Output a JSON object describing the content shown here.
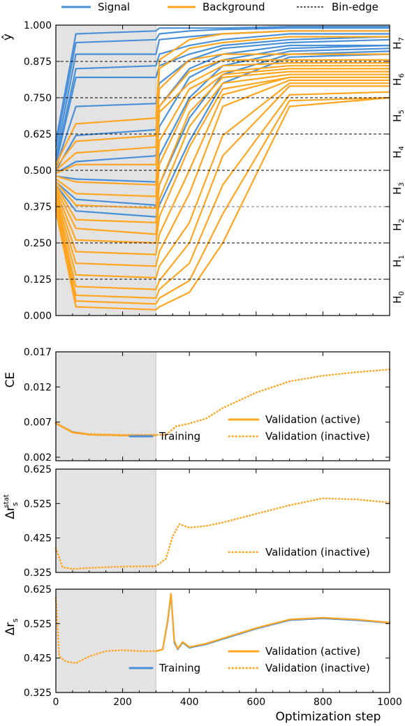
{
  "colors": {
    "signal": "#4a90d9",
    "background": "#ffa520",
    "shade": "#e3e3e3",
    "binedge": "#000000"
  },
  "legend_top": {
    "signal": "Signal",
    "background": "Background",
    "binedge": "Bin-edge"
  },
  "xlabel": "Optimization step",
  "x_ticks": [
    "0",
    "200",
    "400",
    "600",
    "800",
    "1000"
  ],
  "chart_data": [
    {
      "type": "line",
      "panel": "yhat",
      "ylabel": "ŷ",
      "xlim": [
        0,
        1000
      ],
      "ylim": [
        0,
        1
      ],
      "y_ticks": [
        "0.000",
        "0.125",
        "0.250",
        "0.375",
        "0.500",
        "0.625",
        "0.750",
        "0.875",
        "1.000"
      ],
      "shaded_region": [
        0,
        300
      ],
      "bin_edges": [
        0.125,
        0.25,
        0.375,
        0.5,
        0.625,
        0.75,
        0.875
      ],
      "zones": [
        {
          "label": "H",
          "sub": "0"
        },
        {
          "label": "H",
          "sub": "1"
        },
        {
          "label": "H",
          "sub": "2"
        },
        {
          "label": "H",
          "sub": "3"
        },
        {
          "label": "H",
          "sub": "4"
        },
        {
          "label": "H",
          "sub": "5"
        },
        {
          "label": "H",
          "sub": "6"
        },
        {
          "label": "H",
          "sub": "7"
        }
      ],
      "signal_series": [
        {
          "x": [
            0,
            60,
            300,
            310,
            400,
            500,
            700,
            1000
          ],
          "y": [
            0.6,
            0.97,
            0.98,
            0.99,
            0.99,
            0.99,
            0.995,
            0.995
          ]
        },
        {
          "x": [
            0,
            60,
            300,
            310,
            400,
            500,
            700,
            1000
          ],
          "y": [
            0.58,
            0.94,
            0.95,
            0.97,
            0.98,
            0.985,
            0.99,
            0.99
          ]
        },
        {
          "x": [
            0,
            60,
            300,
            310,
            400,
            500,
            700,
            1000
          ],
          "y": [
            0.55,
            0.9,
            0.9,
            0.95,
            0.96,
            0.97,
            0.98,
            0.98
          ]
        },
        {
          "x": [
            0,
            60,
            300,
            310,
            400,
            500,
            700,
            1000
          ],
          "y": [
            0.53,
            0.85,
            0.86,
            0.9,
            0.93,
            0.95,
            0.97,
            0.97
          ]
        },
        {
          "x": [
            0,
            60,
            300,
            310,
            400,
            500,
            700,
            1000
          ],
          "y": [
            0.52,
            0.82,
            0.82,
            0.86,
            0.9,
            0.93,
            0.95,
            0.96
          ]
        },
        {
          "x": [
            0,
            60,
            300,
            310,
            400,
            500,
            700,
            1000
          ],
          "y": [
            0.51,
            0.72,
            0.73,
            0.8,
            0.88,
            0.92,
            0.94,
            0.95
          ]
        },
        {
          "x": [
            0,
            60,
            300,
            310,
            400,
            500,
            700,
            1000
          ],
          "y": [
            0.5,
            0.62,
            0.64,
            0.72,
            0.85,
            0.9,
            0.93,
            0.93
          ]
        },
        {
          "x": [
            0,
            60,
            300,
            310,
            400,
            500,
            700,
            1000
          ],
          "y": [
            0.49,
            0.53,
            0.55,
            0.65,
            0.82,
            0.88,
            0.92,
            0.93
          ]
        },
        {
          "x": [
            0,
            60,
            300,
            310,
            400,
            500,
            700,
            1000
          ],
          "y": [
            0.48,
            0.47,
            0.46,
            0.55,
            0.75,
            0.86,
            0.91,
            0.92
          ]
        },
        {
          "x": [
            0,
            60,
            300,
            310,
            400,
            500,
            700,
            1000
          ],
          "y": [
            0.46,
            0.4,
            0.38,
            0.45,
            0.68,
            0.83,
            0.9,
            0.91
          ]
        },
        {
          "x": [
            0,
            60,
            300,
            310,
            400,
            500,
            700,
            1000
          ],
          "y": [
            0.45,
            0.36,
            0.34,
            0.38,
            0.6,
            0.8,
            0.89,
            0.9
          ]
        }
      ],
      "background_series": [
        {
          "x": [
            0,
            60,
            300,
            310,
            400,
            500,
            700,
            1000
          ],
          "y": [
            0.52,
            0.66,
            0.68,
            0.88,
            0.95,
            0.97,
            0.98,
            0.98
          ]
        },
        {
          "x": [
            0,
            60,
            300,
            310,
            400,
            500,
            700,
            1000
          ],
          "y": [
            0.51,
            0.6,
            0.62,
            0.85,
            0.92,
            0.94,
            0.96,
            0.96
          ]
        },
        {
          "x": [
            0,
            60,
            300,
            310,
            400,
            500,
            700,
            1000
          ],
          "y": [
            0.5,
            0.56,
            0.58,
            0.78,
            0.88,
            0.9,
            0.9,
            0.9
          ]
        },
        {
          "x": [
            0,
            60,
            300,
            310,
            400,
            500,
            700,
            1000
          ],
          "y": [
            0.49,
            0.52,
            0.52,
            0.72,
            0.84,
            0.88,
            0.88,
            0.88
          ]
        },
        {
          "x": [
            0,
            60,
            300,
            310,
            400,
            500,
            700,
            1000
          ],
          "y": [
            0.48,
            0.46,
            0.45,
            0.7,
            0.8,
            0.86,
            0.87,
            0.87
          ]
        },
        {
          "x": [
            0,
            60,
            300,
            310,
            400,
            500,
            700,
            1000
          ],
          "y": [
            0.47,
            0.42,
            0.41,
            0.6,
            0.78,
            0.84,
            0.86,
            0.86
          ]
        },
        {
          "x": [
            0,
            60,
            300,
            310,
            400,
            500,
            700,
            1000
          ],
          "y": [
            0.46,
            0.38,
            0.37,
            0.52,
            0.74,
            0.83,
            0.85,
            0.85
          ]
        },
        {
          "x": [
            0,
            60,
            300,
            310,
            400,
            500,
            700,
            1000
          ],
          "y": [
            0.45,
            0.33,
            0.32,
            0.45,
            0.7,
            0.82,
            0.84,
            0.84
          ]
        },
        {
          "x": [
            0,
            60,
            300,
            310,
            400,
            500,
            700,
            1000
          ],
          "y": [
            0.44,
            0.3,
            0.28,
            0.4,
            0.65,
            0.8,
            0.83,
            0.83
          ]
        },
        {
          "x": [
            0,
            60,
            300,
            310,
            400,
            500,
            700,
            1000
          ],
          "y": [
            0.43,
            0.26,
            0.25,
            0.34,
            0.58,
            0.78,
            0.82,
            0.82
          ]
        },
        {
          "x": [
            0,
            60,
            300,
            310,
            400,
            500,
            700,
            1000
          ],
          "y": [
            0.42,
            0.22,
            0.21,
            0.28,
            0.5,
            0.76,
            0.82,
            0.82
          ]
        },
        {
          "x": [
            0,
            60,
            300,
            310,
            400,
            500,
            700,
            1000
          ],
          "y": [
            0.41,
            0.18,
            0.17,
            0.22,
            0.42,
            0.72,
            0.81,
            0.81
          ]
        },
        {
          "x": [
            0,
            60,
            300,
            310,
            400,
            500,
            700,
            1000
          ],
          "y": [
            0.4,
            0.14,
            0.13,
            0.17,
            0.32,
            0.62,
            0.8,
            0.8
          ]
        },
        {
          "x": [
            0,
            60,
            300,
            310,
            400,
            500,
            700,
            1000
          ],
          "y": [
            0.39,
            0.1,
            0.09,
            0.12,
            0.25,
            0.55,
            0.79,
            0.79
          ]
        },
        {
          "x": [
            0,
            60,
            300,
            310,
            400,
            500,
            700,
            1000
          ],
          "y": [
            0.38,
            0.07,
            0.06,
            0.09,
            0.18,
            0.45,
            0.76,
            0.77
          ]
        },
        {
          "x": [
            0,
            60,
            300,
            310,
            400,
            500,
            700,
            1000
          ],
          "y": [
            0.37,
            0.05,
            0.04,
            0.06,
            0.12,
            0.35,
            0.74,
            0.75
          ]
        },
        {
          "x": [
            0,
            60,
            300,
            310,
            400,
            500,
            700,
            1000
          ],
          "y": [
            0.36,
            0.03,
            0.02,
            0.03,
            0.08,
            0.25,
            0.72,
            0.75
          ]
        }
      ]
    },
    {
      "type": "line",
      "panel": "ce",
      "ylabel": "CE",
      "xlim": [
        0,
        1000
      ],
      "ylim": [
        0.0015,
        0.017
      ],
      "y_ticks": [
        "0.017",
        "0.012",
        "0.007",
        "0.002"
      ],
      "y_tick_values": [
        0.017,
        0.012,
        0.007,
        0.002
      ],
      "shaded_region": [
        0,
        300
      ],
      "series": [
        {
          "name": "Training",
          "style": "solid",
          "color": "signal",
          "x": [
            0,
            50,
            100,
            200,
            300
          ],
          "y": [
            0.0068,
            0.0056,
            0.0052,
            0.0051,
            0.0051
          ]
        },
        {
          "name": "Validation (active)",
          "style": "solid",
          "color": "background",
          "x": [
            0,
            50,
            100,
            200,
            300
          ],
          "y": [
            0.0068,
            0.0055,
            0.0052,
            0.0051,
            0.0051
          ]
        },
        {
          "name": "Validation (inactive)",
          "style": "dotted",
          "color": "background",
          "x": [
            0,
            50,
            100,
            200,
            300,
            330,
            360,
            400,
            450,
            500,
            600,
            700,
            800,
            900,
            1000
          ],
          "y": [
            0.0069,
            0.0056,
            0.0053,
            0.0052,
            0.0052,
            0.0052,
            0.0064,
            0.0068,
            0.0075,
            0.009,
            0.0112,
            0.0128,
            0.0136,
            0.0141,
            0.0145
          ]
        }
      ],
      "legend": [
        "Validation (active)",
        "Training",
        "Validation (inactive)"
      ]
    },
    {
      "type": "line",
      "panel": "dr_stat",
      "ylabel": "Δr",
      "ylabel_sup": "stat",
      "ylabel_sub": "s",
      "xlim": [
        0,
        1000
      ],
      "ylim": [
        0.325,
        0.625
      ],
      "y_ticks": [
        "0.625",
        "0.525",
        "0.425",
        "0.325"
      ],
      "y_tick_values": [
        0.625,
        0.525,
        0.425,
        0.325
      ],
      "shaded_region": [
        0,
        300
      ],
      "series": [
        {
          "name": "Validation (inactive)",
          "style": "dotted",
          "color": "background",
          "x": [
            0,
            20,
            50,
            100,
            200,
            300,
            330,
            350,
            370,
            400,
            450,
            500,
            600,
            700,
            800,
            900,
            1000
          ],
          "y": [
            0.395,
            0.34,
            0.335,
            0.338,
            0.342,
            0.343,
            0.365,
            0.43,
            0.465,
            0.455,
            0.46,
            0.47,
            0.495,
            0.52,
            0.54,
            0.537,
            0.528
          ]
        }
      ],
      "legend": [
        "Validation (inactive)"
      ]
    },
    {
      "type": "line",
      "panel": "dr",
      "ylabel": "Δr",
      "ylabel_sub": "s",
      "xlim": [
        0,
        1000
      ],
      "ylim": [
        0.325,
        0.625
      ],
      "y_ticks": [
        "0.625",
        "0.525",
        "0.425",
        "0.325"
      ],
      "y_tick_values": [
        0.625,
        0.525,
        0.425,
        0.325
      ],
      "shaded_region": [
        0,
        300
      ],
      "series": [
        {
          "name": "Training",
          "style": "solid",
          "color": "signal",
          "x": [
            300,
            320,
            335,
            345,
            355,
            365,
            380,
            400,
            450,
            500,
            600,
            700,
            800,
            900,
            1000
          ],
          "y": [
            0.445,
            0.45,
            0.53,
            0.61,
            0.47,
            0.45,
            0.47,
            0.455,
            0.465,
            0.48,
            0.51,
            0.535,
            0.54,
            0.535,
            0.527
          ]
        },
        {
          "name": "Validation (active)",
          "style": "solid",
          "color": "background",
          "x": [
            300,
            320,
            335,
            345,
            355,
            365,
            380,
            400,
            450,
            500,
            600,
            700,
            800,
            900,
            1000
          ],
          "y": [
            0.445,
            0.45,
            0.535,
            0.612,
            0.475,
            0.452,
            0.472,
            0.457,
            0.467,
            0.482,
            0.512,
            0.537,
            0.542,
            0.537,
            0.528
          ]
        },
        {
          "name": "Validation (inactive)",
          "style": "dotted",
          "color": "background",
          "x": [
            0,
            10,
            30,
            60,
            100,
            150,
            200,
            250,
            300
          ],
          "y": [
            0.6,
            0.43,
            0.415,
            0.41,
            0.43,
            0.445,
            0.448,
            0.445,
            0.445
          ]
        }
      ],
      "legend": [
        "Validation (active)",
        "Training",
        "Validation (inactive)"
      ]
    }
  ]
}
